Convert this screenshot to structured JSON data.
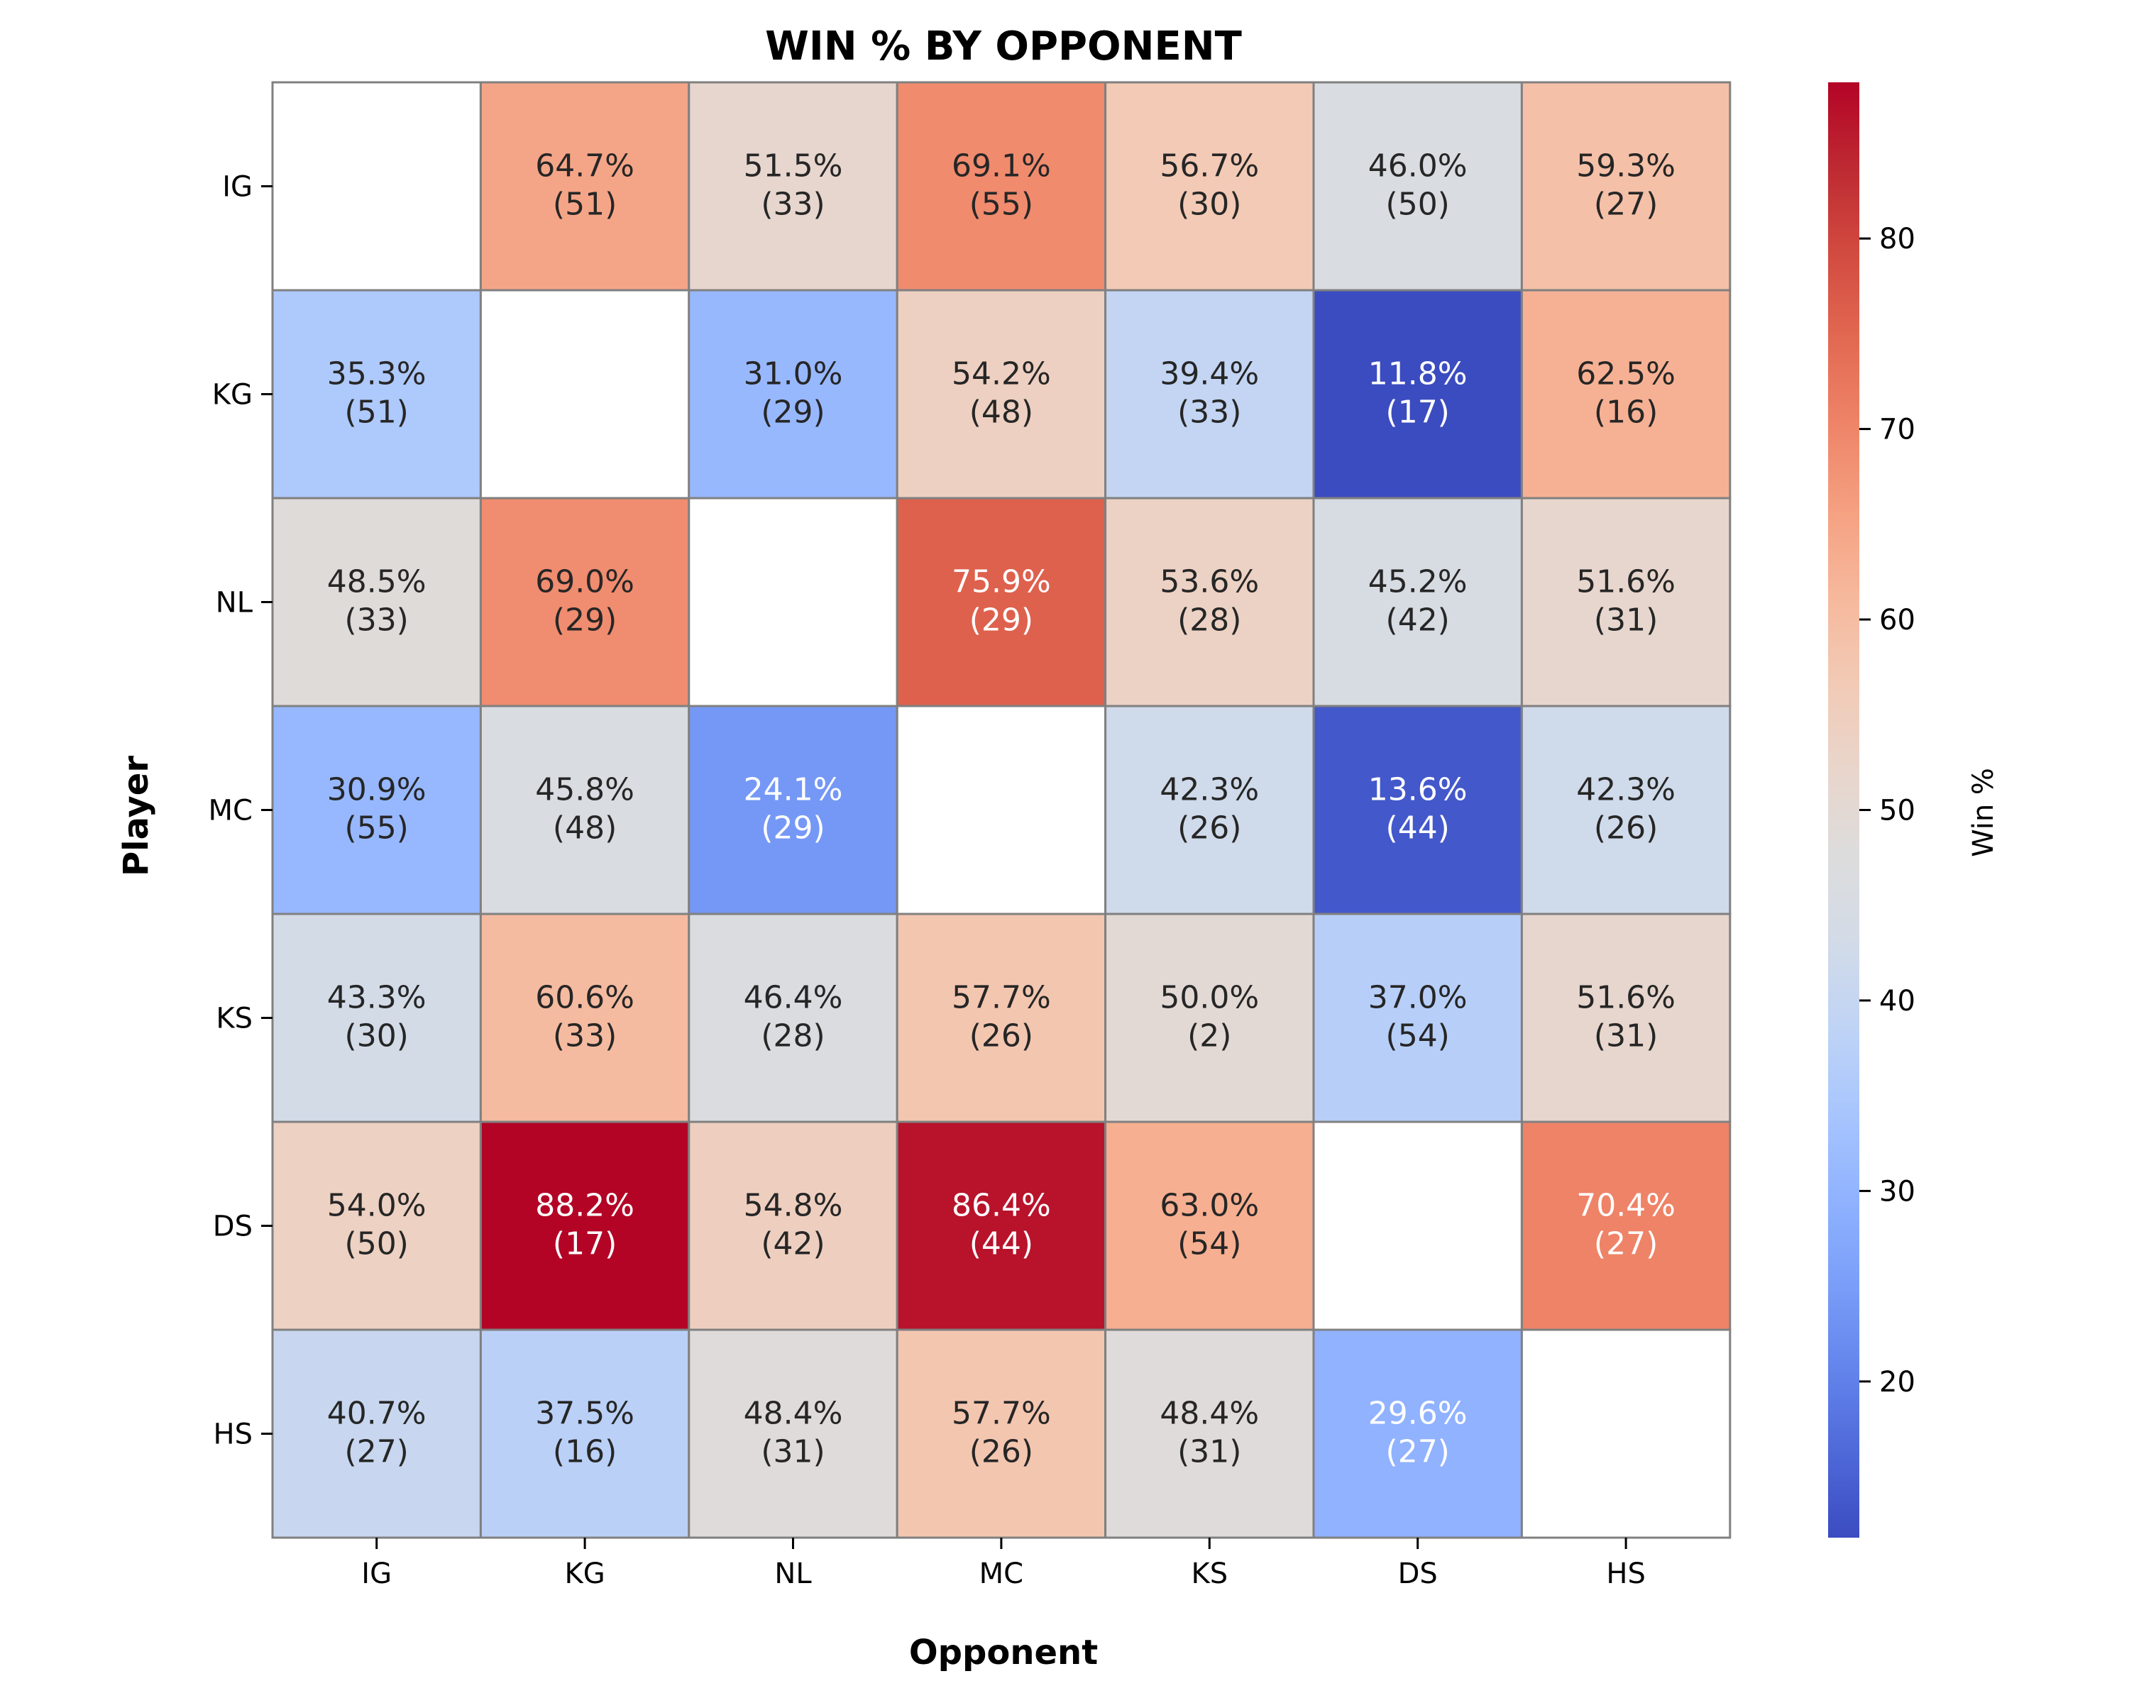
{
  "chart_data": {
    "type": "heatmap",
    "title": "WIN % BY OPPONENT",
    "xlabel": "Opponent",
    "ylabel": "Player",
    "x_categories": [
      "IG",
      "KG",
      "NL",
      "MC",
      "KS",
      "DS",
      "HS"
    ],
    "y_categories": [
      "IG",
      "KG",
      "NL",
      "MC",
      "KS",
      "DS",
      "HS"
    ],
    "cells": [
      [
        null,
        {
          "pct": "64.7%",
          "n": "(51)",
          "value": 64.7
        },
        {
          "pct": "51.5%",
          "n": "(33)",
          "value": 51.5
        },
        {
          "pct": "69.1%",
          "n": "(55)",
          "value": 69.1
        },
        {
          "pct": "56.7%",
          "n": "(30)",
          "value": 56.7
        },
        {
          "pct": "46.0%",
          "n": "(50)",
          "value": 46.0
        },
        {
          "pct": "59.3%",
          "n": "(27)",
          "value": 59.3
        }
      ],
      [
        {
          "pct": "35.3%",
          "n": "(51)",
          "value": 35.3
        },
        null,
        {
          "pct": "31.0%",
          "n": "(29)",
          "value": 31.0
        },
        {
          "pct": "54.2%",
          "n": "(48)",
          "value": 54.2
        },
        {
          "pct": "39.4%",
          "n": "(33)",
          "value": 39.4
        },
        {
          "pct": "11.8%",
          "n": "(17)",
          "value": 11.8
        },
        {
          "pct": "62.5%",
          "n": "(16)",
          "value": 62.5
        }
      ],
      [
        {
          "pct": "48.5%",
          "n": "(33)",
          "value": 48.5
        },
        {
          "pct": "69.0%",
          "n": "(29)",
          "value": 69.0
        },
        null,
        {
          "pct": "75.9%",
          "n": "(29)",
          "value": 75.9
        },
        {
          "pct": "53.6%",
          "n": "(28)",
          "value": 53.6
        },
        {
          "pct": "45.2%",
          "n": "(42)",
          "value": 45.2
        },
        {
          "pct": "51.6%",
          "n": "(31)",
          "value": 51.6
        }
      ],
      [
        {
          "pct": "30.9%",
          "n": "(55)",
          "value": 30.9
        },
        {
          "pct": "45.8%",
          "n": "(48)",
          "value": 45.8
        },
        {
          "pct": "24.1%",
          "n": "(29)",
          "value": 24.1
        },
        null,
        {
          "pct": "42.3%",
          "n": "(26)",
          "value": 42.3
        },
        {
          "pct": "13.6%",
          "n": "(44)",
          "value": 13.6
        },
        {
          "pct": "42.3%",
          "n": "(26)",
          "value": 42.3
        }
      ],
      [
        {
          "pct": "43.3%",
          "n": "(30)",
          "value": 43.3
        },
        {
          "pct": "60.6%",
          "n": "(33)",
          "value": 60.6
        },
        {
          "pct": "46.4%",
          "n": "(28)",
          "value": 46.4
        },
        {
          "pct": "57.7%",
          "n": "(26)",
          "value": 57.7
        },
        {
          "pct": "50.0%",
          "n": "(2)",
          "value": 50.0
        },
        {
          "pct": "37.0%",
          "n": "(54)",
          "value": 37.0
        },
        {
          "pct": "51.6%",
          "n": "(31)",
          "value": 51.6
        }
      ],
      [
        {
          "pct": "54.0%",
          "n": "(50)",
          "value": 54.0
        },
        {
          "pct": "88.2%",
          "n": "(17)",
          "value": 88.2
        },
        {
          "pct": "54.8%",
          "n": "(42)",
          "value": 54.8
        },
        {
          "pct": "86.4%",
          "n": "(44)",
          "value": 86.4
        },
        {
          "pct": "63.0%",
          "n": "(54)",
          "value": 63.0
        },
        null,
        {
          "pct": "70.4%",
          "n": "(27)",
          "value": 70.4
        }
      ],
      [
        {
          "pct": "40.7%",
          "n": "(27)",
          "value": 40.7
        },
        {
          "pct": "37.5%",
          "n": "(16)",
          "value": 37.5
        },
        {
          "pct": "48.4%",
          "n": "(31)",
          "value": 48.4
        },
        {
          "pct": "57.7%",
          "n": "(26)",
          "value": 57.7
        },
        {
          "pct": "48.4%",
          "n": "(31)",
          "value": 48.4
        },
        {
          "pct": "29.6%",
          "n": "(27)",
          "value": 29.6
        },
        null
      ]
    ],
    "colorbar": {
      "label": "Win %",
      "ticks": [
        "20",
        "30",
        "40",
        "50",
        "60",
        "70",
        "80"
      ],
      "range": [
        11.8,
        88.2
      ],
      "colormap": "coolwarm",
      "colors": [
        "#3b4cc0",
        "#4f69d9",
        "#6485ec",
        "#7b9ff9",
        "#91b3ff",
        "#a9c6fd",
        "#c0d4f5",
        "#d3dbe7",
        "#dddcdc",
        "#e9d5cb",
        "#f2cab5",
        "#f6b89c",
        "#f5a081",
        "#ee8468",
        "#e26952",
        "#d24b40",
        "#be2a32",
        "#b40426"
      ]
    },
    "grid": true,
    "legend": "colorbar-right"
  }
}
